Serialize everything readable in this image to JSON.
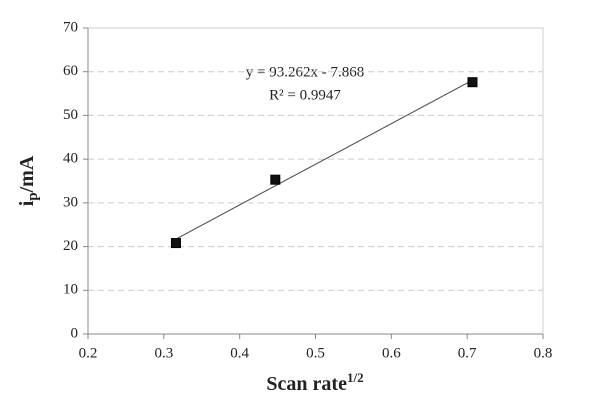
{
  "chart_data": {
    "type": "scatter",
    "xlabel": [
      "Scan rate",
      "1/2"
    ],
    "ylabel": [
      "i",
      "p",
      "/mA"
    ],
    "annotations": [
      "y = 93.262x - 7.868",
      "R² = 0.9947"
    ],
    "series": [
      {
        "color": "#111111",
        "x": [
          0.316,
          0.447,
          0.707
        ],
        "values": [
          20.8,
          35.3,
          57.6
        ]
      }
    ],
    "trendline": true,
    "xlim": [
      0.2,
      0.8
    ],
    "xticks": [
      0.2,
      0.3,
      0.4,
      0.5,
      0.6,
      0.7,
      0.8
    ],
    "ylim": [
      0,
      70
    ],
    "yticks": [
      0,
      10,
      20,
      30,
      40,
      50,
      60,
      70
    ],
    "grid": true
  }
}
